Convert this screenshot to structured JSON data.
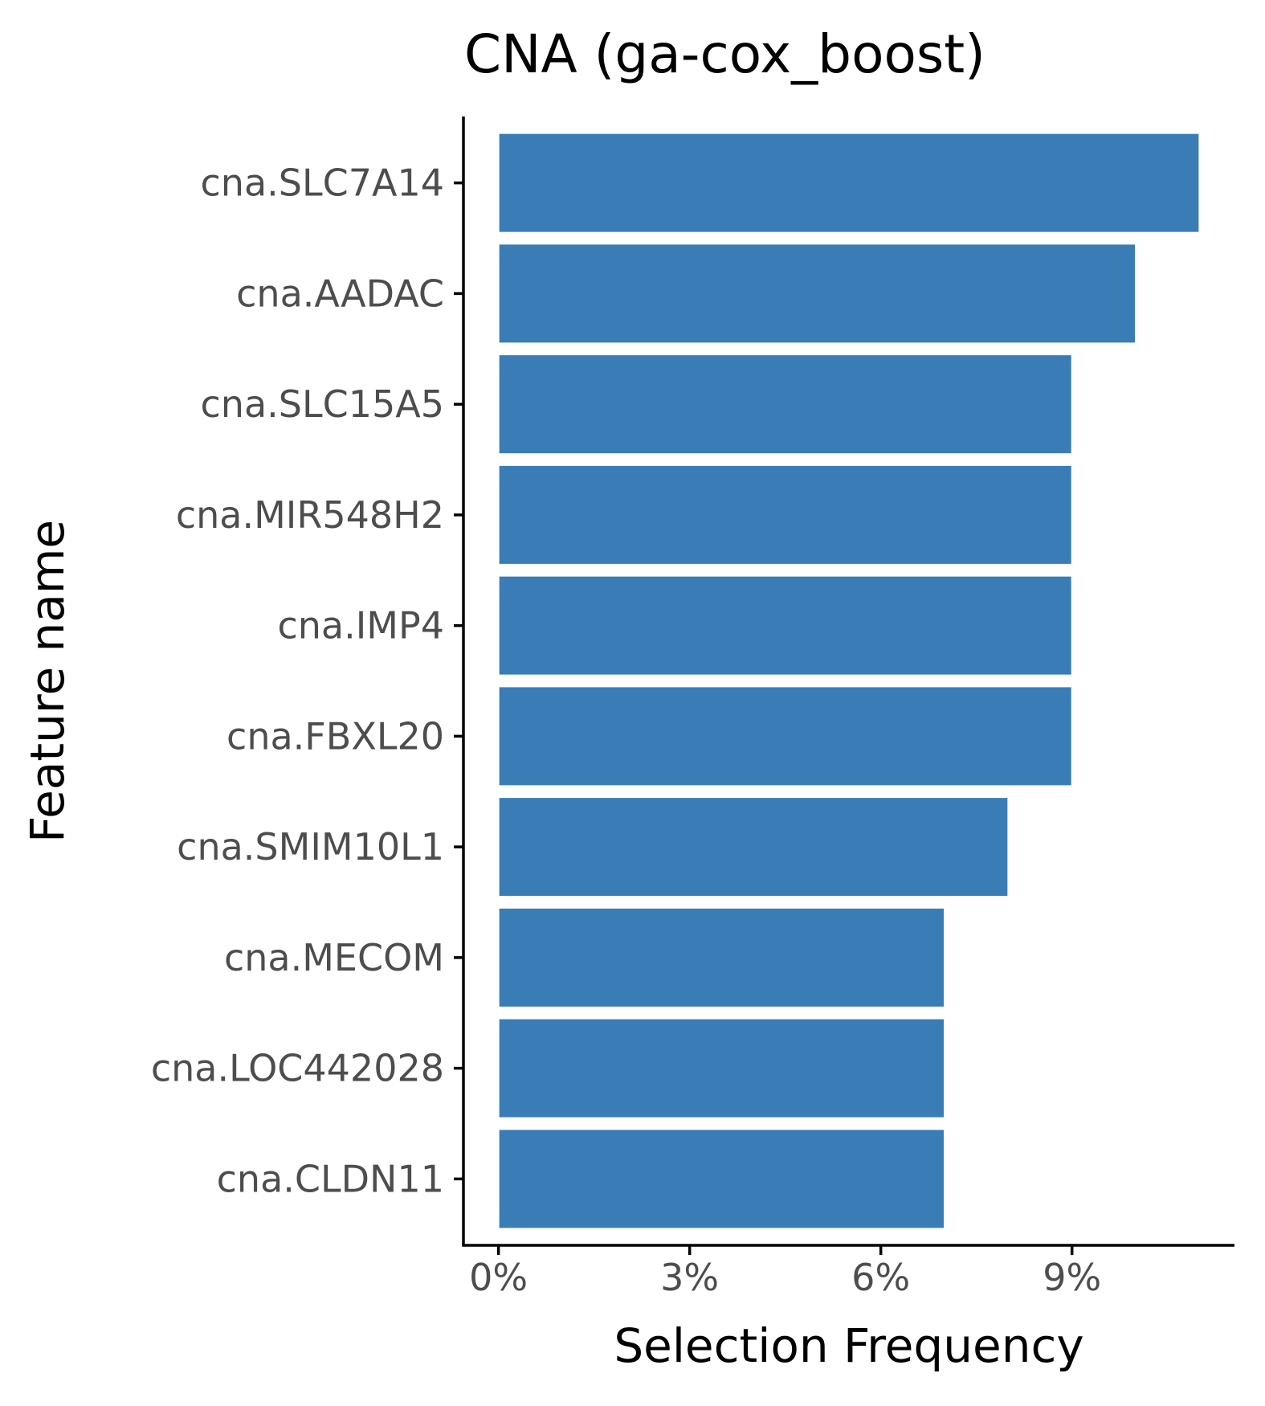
{
  "chart_data": {
    "type": "bar",
    "orientation": "horizontal",
    "title": "CNA (ga-cox_boost)",
    "xlabel": "Selection Frequency",
    "ylabel": "Feature name",
    "categories": [
      "cna.SLC7A14",
      "cna.AADAC",
      "cna.SLC15A5",
      "cna.MIR548H2",
      "cna.IMP4",
      "cna.FBXL20",
      "cna.SMIM10L1",
      "cna.MECOM",
      "cna.LOC442028",
      "cna.CLDN11"
    ],
    "values": [
      11,
      10,
      9,
      9,
      9,
      9,
      8,
      7,
      7,
      7
    ],
    "x_ticks": [
      0,
      3,
      6,
      9
    ],
    "x_tick_labels": [
      "0%",
      "3%",
      "6%",
      "9%"
    ],
    "xlim": [
      -0.55,
      11.55
    ],
    "grid": false,
    "legend": "none",
    "colors": {
      "bar": "#3a7db6"
    }
  }
}
